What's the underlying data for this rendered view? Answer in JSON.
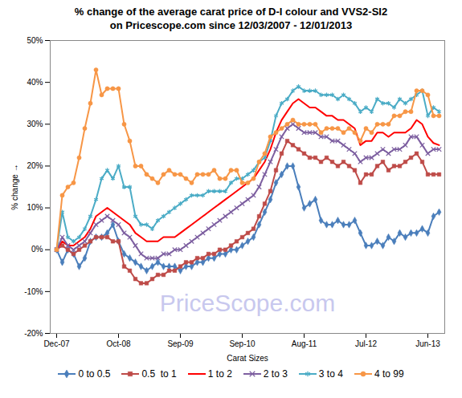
{
  "chart_data": {
    "type": "line",
    "title": "% change of the average carat price of  D-I colour and VVS2-SI2  on Pricescope.com since 12/03/2007 - 12/01/2013",
    "x_label": "Carat Sizes",
    "y_label": "% change",
    "annotations": [
      "PriceScope.com"
    ],
    "legend": "bottom",
    "grid": false,
    "categories": [
      "Dec-07",
      null,
      null,
      null,
      null,
      null,
      null,
      null,
      null,
      null,
      null,
      "Oct-08",
      null,
      null,
      null,
      null,
      null,
      null,
      null,
      null,
      null,
      null,
      "Sep-09",
      null,
      null,
      null,
      null,
      null,
      null,
      null,
      null,
      null,
      null,
      "Sep-10",
      null,
      null,
      null,
      null,
      null,
      null,
      null,
      null,
      null,
      null,
      "Aug-11",
      null,
      null,
      null,
      null,
      null,
      null,
      null,
      null,
      null,
      null,
      "Jul-12",
      null,
      null,
      null,
      null,
      null,
      null,
      null,
      null,
      null,
      null,
      "Jun-13",
      null,
      null
    ],
    "ylim": [
      -20,
      50
    ],
    "yticks": [
      {
        "value": -20,
        "label": "-20%"
      },
      {
        "value": -10,
        "label": "-10%"
      },
      {
        "value": 0,
        "label": "0%"
      },
      {
        "value": 10,
        "label": "10%"
      },
      {
        "value": 20,
        "label": "20%"
      },
      {
        "value": 30,
        "label": "30%"
      },
      {
        "value": 40,
        "label": "40%"
      },
      {
        "value": 50,
        "label": "50%"
      }
    ],
    "series": [
      {
        "name": "0 to 0.5",
        "color": "#4a7ebb",
        "marker": "diamond",
        "values": [
          0,
          -3,
          0,
          -1,
          -4,
          -2,
          2,
          3,
          3,
          4,
          6,
          2,
          -1,
          -2,
          -3,
          -4,
          -5,
          -4,
          -3,
          -4,
          -4,
          -4,
          -5,
          -4,
          -4,
          -3,
          -3,
          -2,
          -2,
          -1,
          -1,
          0,
          0,
          1,
          2,
          3,
          6,
          9,
          12,
          16,
          18,
          20,
          20,
          15,
          10,
          11,
          12,
          7,
          6,
          6,
          7,
          6,
          6,
          7,
          4,
          1,
          1,
          2,
          1,
          3,
          2,
          4,
          3,
          4,
          4,
          5,
          4,
          8,
          9
        ]
      },
      {
        "name": "0.5  to 1",
        "color": "#be4b48",
        "marker": "square",
        "values": [
          0,
          1,
          0,
          -1,
          0,
          1,
          2,
          3,
          3,
          3,
          2,
          2,
          -4,
          -5,
          -7,
          -8,
          -8,
          -7,
          -6,
          -6,
          -5,
          -5,
          -4,
          -3,
          -3,
          -2,
          -2,
          -1,
          -1,
          0,
          0,
          1,
          2,
          3,
          4,
          5,
          8,
          11,
          14,
          19,
          23,
          26,
          25,
          24,
          23,
          22,
          22,
          21,
          22,
          21,
          20,
          21,
          20,
          19,
          16,
          18,
          18,
          20,
          21,
          19,
          20,
          20,
          21,
          22,
          23,
          21,
          18,
          18,
          18
        ]
      },
      {
        "name": "1 to 2",
        "color": "#ff0000",
        "marker": "none",
        "values": [
          0,
          2,
          1,
          1,
          2,
          3,
          5,
          8,
          9,
          10,
          9,
          8,
          7,
          6,
          4,
          3,
          2,
          2,
          2,
          3,
          3,
          3,
          4,
          5,
          6,
          7,
          8,
          9,
          10,
          11,
          12,
          13,
          14,
          15,
          16,
          17,
          19,
          21,
          24,
          28,
          31,
          33,
          35,
          36,
          35,
          34,
          34,
          33,
          32,
          32,
          31,
          31,
          30,
          29,
          25,
          26,
          26,
          28,
          28,
          27,
          28,
          28,
          28,
          29,
          31,
          30,
          27,
          25.5,
          25
        ]
      },
      {
        "name": "2 to 3",
        "color": "#7d5fa0",
        "marker": "x",
        "values": [
          0,
          3,
          1,
          0,
          1,
          2,
          4,
          6,
          7,
          8,
          7,
          6,
          4,
          3,
          1,
          -1,
          -2,
          -2,
          -2,
          -1,
          -1,
          0,
          0,
          1,
          2,
          3,
          4,
          5,
          6,
          7,
          8,
          9,
          10,
          11,
          12,
          13,
          15,
          18,
          21,
          24,
          27,
          29,
          30,
          29,
          28,
          28,
          28,
          27,
          27,
          26,
          26,
          25,
          24,
          23,
          21,
          22,
          22,
          23,
          24,
          23,
          24,
          24,
          25,
          27,
          27,
          25,
          23,
          24,
          24
        ]
      },
      {
        "name": "3 to 4",
        "color": "#4bacc6",
        "marker": "asterisk",
        "values": [
          0,
          9,
          3,
          2,
          3,
          5,
          8,
          12,
          17,
          19,
          17,
          20,
          15,
          15,
          8,
          6,
          6,
          5,
          7,
          8,
          9,
          10,
          11,
          12,
          13,
          13,
          13,
          14,
          14,
          14,
          14,
          16,
          17,
          17,
          18,
          19,
          21,
          22,
          26,
          32,
          35,
          36,
          38,
          39,
          38,
          38,
          38,
          37,
          37,
          37,
          36,
          37,
          36,
          35,
          33,
          34,
          33,
          36,
          35,
          35,
          34,
          36,
          35,
          36,
          37,
          38,
          32,
          34,
          33
        ]
      },
      {
        "name": "4 to 99",
        "color": "#f79646",
        "marker": "circle",
        "values": [
          0,
          13,
          15,
          16,
          22,
          29,
          35,
          43,
          37,
          38.5,
          38.5,
          38.5,
          30,
          26,
          20,
          20,
          18,
          17,
          16,
          18,
          19,
          18,
          18,
          17,
          16,
          18,
          18,
          18,
          19,
          17,
          17,
          19,
          19,
          16,
          16,
          17,
          21,
          23,
          27,
          28,
          29,
          30,
          31,
          30,
          30,
          30,
          30,
          28,
          29,
          29,
          29,
          28,
          29,
          28,
          26,
          29,
          28,
          30,
          30,
          30,
          32,
          32,
          33,
          33,
          38,
          38,
          37,
          32,
          32
        ]
      }
    ]
  }
}
